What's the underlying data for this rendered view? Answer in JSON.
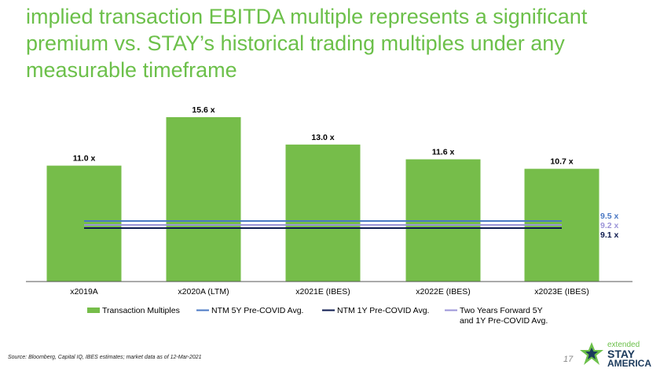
{
  "title": "implied transaction EBITDA multiple represents a significant premium vs. STAY’s historical trading multiples under any measurable timeframe",
  "chart_data": {
    "type": "bar",
    "categories": [
      "x2019A",
      "x2020A (LTM)",
      "x2021E (IBES)",
      "x2022E (IBES)",
      "x2023E (IBES)"
    ],
    "series": [
      {
        "name": "Transaction Multiples",
        "values": [
          11.0,
          15.6,
          13.0,
          11.6,
          10.7
        ],
        "labels": [
          "11.0 x",
          "15.6 x",
          "13.0 x",
          "11.6 x",
          "10.7 x"
        ],
        "color": "#76bd4a"
      }
    ],
    "reference_lines": [
      {
        "name": "NTM 5Y Pre-COVID Avg.",
        "value": 9.5,
        "label": "9.5 x",
        "color": "#4a78c4"
      },
      {
        "name": "Two Years Forward 5Y\nand 1Y Pre-COVID Avg.",
        "value": 9.2,
        "label": "9.2 x",
        "color": "#9b94d8"
      },
      {
        "name": "NTM 1Y Pre-COVID Avg.",
        "value": 9.1,
        "label": "9.1 x",
        "color": "#0d1a4f"
      }
    ],
    "legend": [
      {
        "name": "Transaction Multiples",
        "kind": "box",
        "color": "#76bd4a"
      },
      {
        "name": "NTM 5Y Pre-COVID Avg.",
        "kind": "line",
        "color": "#4a78c4"
      },
      {
        "name": "NTM 1Y Pre-COVID Avg.",
        "kind": "line",
        "color": "#0d1a4f"
      },
      {
        "name": "Two Years Forward 5Y",
        "name2": "and 1Y Pre-COVID Avg.",
        "kind": "line",
        "color": "#9b94d8"
      }
    ],
    "legend_position": "bottom",
    "ylim": [
      0,
      16
    ],
    "grid": false
  },
  "footer": {
    "source": "Source: Bloomberg, Capital IQ, IBES estimates; market data as of 12-Mar-2021",
    "page_number": "17"
  },
  "logo": {
    "line1": "extended",
    "line2": "STAY",
    "line3": "AMERICA"
  }
}
